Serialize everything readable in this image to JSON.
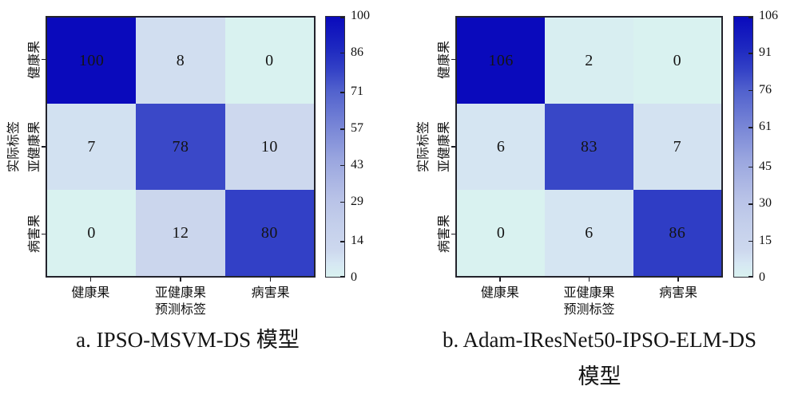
{
  "figure": {
    "background": "#ffffff",
    "accent_dark_blue": "#0a0abc",
    "accent_light_cyan": "#d9f2f0"
  },
  "colormap": {
    "positions": [
      0,
      0.05,
      0.1,
      0.2,
      0.3,
      0.45,
      0.6,
      0.72,
      0.8,
      0.88,
      1.0
    ],
    "colors": [
      "#d9f2f0",
      "#d6e7f3",
      "#cdd8ee",
      "#c4cfeb",
      "#b8c2e7",
      "#9aa6df",
      "#7280d5",
      "#5060cd",
      "#3240c6",
      "#1d28c0",
      "#0a0abc"
    ]
  },
  "chart_data": [
    {
      "type": "heatmap",
      "title": "a. IPSO-MSVM-DS 模型",
      "caption_lines": [
        "a. IPSO-MSVM-DS 模型",
        ""
      ],
      "xlabel": "预测标签",
      "ylabel": "实际标签",
      "x_categories": [
        "健康果",
        "亚健康果",
        "病害果"
      ],
      "y_categories": [
        "健康果",
        "亚健康果",
        "病害果"
      ],
      "matrix": [
        [
          100,
          8,
          0
        ],
        [
          7,
          78,
          10
        ],
        [
          0,
          12,
          80
        ]
      ],
      "vmin": 0,
      "vmax": 100,
      "colorbar_ticks": [
        100,
        86,
        71,
        57,
        43,
        29,
        14,
        0
      ],
      "colorbar_position": "right",
      "grid": false,
      "legend": "none",
      "cell_text_color": "#141414"
    },
    {
      "type": "heatmap",
      "title": "b. Adam-IResNet50-IPSO-ELM-DS 模型",
      "caption_lines": [
        "b. Adam-IResNet50-IPSO-ELM-DS",
        "模型"
      ],
      "xlabel": "预测标签",
      "ylabel": "实际标签",
      "x_categories": [
        "健康果",
        "亚健康果",
        "病害果"
      ],
      "y_categories": [
        "健康果",
        "亚健康果",
        "病害果"
      ],
      "matrix": [
        [
          106,
          2,
          0
        ],
        [
          6,
          83,
          7
        ],
        [
          0,
          6,
          86
        ]
      ],
      "vmin": 0,
      "vmax": 106,
      "colorbar_ticks": [
        106,
        91,
        76,
        61,
        45,
        30,
        15,
        0
      ],
      "colorbar_position": "right",
      "grid": false,
      "legend": "none",
      "cell_text_color": "#141414"
    }
  ]
}
